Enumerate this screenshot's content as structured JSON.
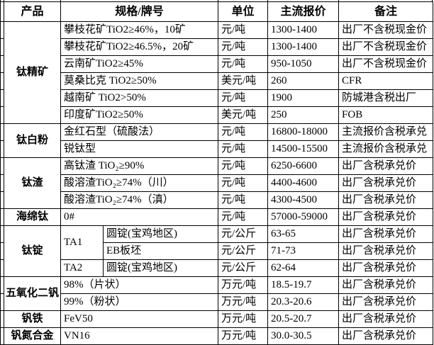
{
  "colors": {
    "border": "#000000",
    "text": "#000000",
    "background": "#ffffff"
  },
  "header": {
    "product": "产品",
    "spec": "规格/牌号",
    "unit": "单位",
    "price": "主流报价",
    "note": "备注"
  },
  "groups": [
    {
      "product": "钛精矿",
      "rows": [
        {
          "spec": "攀枝花矿TiO2≥46%，10矿",
          "unit": "元/吨",
          "price": "1300-1400",
          "note": "出厂不含税现金价"
        },
        {
          "spec": "攀枝花矿TiO2≥46.5%，20矿",
          "unit": "元/吨",
          "price": "1300-1400",
          "note": "出厂不含税现金价"
        },
        {
          "spec": "云南矿TiO2≥45%",
          "unit": "元/吨",
          "price": "950-1050",
          "note": "出厂不含税现金价"
        },
        {
          "spec": "莫桑比克 TiO2≥50%",
          "unit": "美元/吨",
          "price": "260",
          "note": "CFR"
        },
        {
          "spec": "越南矿 TiO2>50%",
          "unit": "元/吨",
          "price": "1900",
          "note": "防城港含税出厂"
        },
        {
          "spec": "印度矿TiO2≥50%",
          "unit": "美元/吨",
          "price": "250",
          "note": "FOB"
        }
      ]
    },
    {
      "product": "钛白粉",
      "rows": [
        {
          "spec": "金红石型（硫酸法）",
          "unit": "元/吨",
          "price": "16800-18000",
          "note": "主流报价含税承兑"
        },
        {
          "spec": "锐钛型",
          "unit": "元/吨",
          "price": "14500-15500",
          "note": "主流报价含税承兑"
        }
      ]
    },
    {
      "product": "钛渣",
      "rows": [
        {
          "spec": "高钛渣 TiO₂≥90%",
          "unit": "元/吨",
          "price": "6250-6600",
          "note": "出厂含税承兑价"
        },
        {
          "spec": "酸溶渣TiO₂≥74%（川）",
          "unit": "元/吨",
          "price": "4400-4600",
          "note": "出厂含税承兑价"
        },
        {
          "spec": "酸溶渣TiO₂≥74%（滇）",
          "unit": "元/吨",
          "price": "4300-4500",
          "note": "出厂含税承兑价"
        }
      ]
    },
    {
      "product": "海绵钛",
      "rows": [
        {
          "spec": "0#",
          "unit": "元/吨",
          "price": "57000-59000",
          "note": "出厂含税承兑价"
        }
      ]
    },
    {
      "product": "钛锭",
      "rows": [
        {
          "spec": "TA1",
          "specRowspan": 2,
          "spec2": "圆锭(宝鸡地区)",
          "unit": "元/公斤",
          "price": "63-65",
          "note": "出厂含税承兑价"
        },
        {
          "spec2": "EB板坯",
          "unit": "元/公斤",
          "price": "71-73",
          "note": "出厂含税承兑价"
        },
        {
          "spec": "TA2",
          "spec2": "圆锭(宝鸡地区)",
          "unit": "元/公斤",
          "price": "62-64",
          "note": "出厂含税承兑价"
        }
      ]
    },
    {
      "product": "五氧化二钒",
      "rows": [
        {
          "spec": "98%（片状）",
          "unit": "万元/吨",
          "price": "18.5-19.7",
          "note": "出厂含税承兑价"
        },
        {
          "spec": "99%（粉状）",
          "unit": "万元/吨",
          "price": "20.3-20.6",
          "note": "出厂含税承兑价"
        }
      ]
    },
    {
      "product": "钒铁",
      "rows": [
        {
          "spec": "FeV50",
          "unit": "万元/吨",
          "price": "20.5-20.7",
          "note": "出厂含税承兑价"
        }
      ]
    },
    {
      "product": "钒氮合金",
      "rows": [
        {
          "spec": "VN16",
          "unit": "万元/吨",
          "price": "30.0-30.5",
          "note": "出厂含税承兑价"
        }
      ]
    }
  ]
}
